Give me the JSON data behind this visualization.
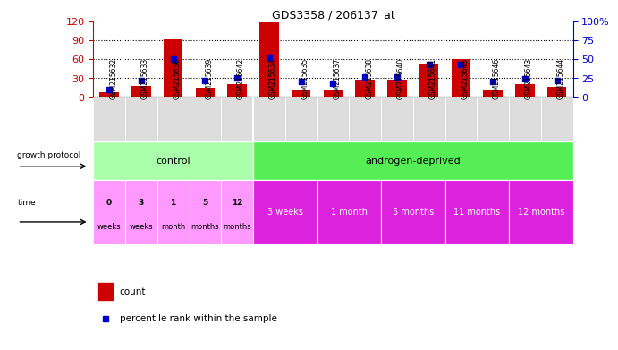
{
  "title": "GDS3358 / 206137_at",
  "samples": [
    "GSM215632",
    "GSM215633",
    "GSM215636",
    "GSM215639",
    "GSM215642",
    "GSM215634",
    "GSM215635",
    "GSM215637",
    "GSM215638",
    "GSM215640",
    "GSM215641",
    "GSM215645",
    "GSM215646",
    "GSM215643",
    "GSM215644"
  ],
  "count_values": [
    7,
    18,
    92,
    15,
    20,
    118,
    12,
    10,
    28,
    28,
    52,
    60,
    12,
    20,
    16
  ],
  "percentile_values": [
    10,
    22,
    50,
    22,
    25,
    52,
    20,
    18,
    27,
    26,
    43,
    43,
    20,
    24,
    22
  ],
  "ylim_left": [
    0,
    120
  ],
  "ylim_right": [
    0,
    100
  ],
  "yticks_left": [
    0,
    30,
    60,
    90,
    120
  ],
  "yticks_right": [
    0,
    25,
    50,
    75,
    100
  ],
  "bar_color": "#cc0000",
  "dot_color": "#0000cc",
  "control_label": "control",
  "androgen_label": "androgen-deprived",
  "time_labels_control": [
    "0\nweeks",
    "3\nweeks",
    "1\nmonth",
    "5\nmonths",
    "12\nmonths"
  ],
  "time_labels_androgen": [
    "3 weeks",
    "1 month",
    "5 months",
    "11 months",
    "12 months"
  ],
  "n_control": 5,
  "n_androgen": 10,
  "legend_count_label": "count",
  "legend_pct_label": "percentile rank within the sample",
  "left_axis_color": "#cc0000",
  "right_axis_color": "#0000cc",
  "protocol_green_light": "#aaffaa",
  "protocol_green_dark": "#55ee55",
  "time_pink_light": "#ff99ff",
  "time_pink_dark": "#dd22dd",
  "sample_bg_color": "#dddddd"
}
